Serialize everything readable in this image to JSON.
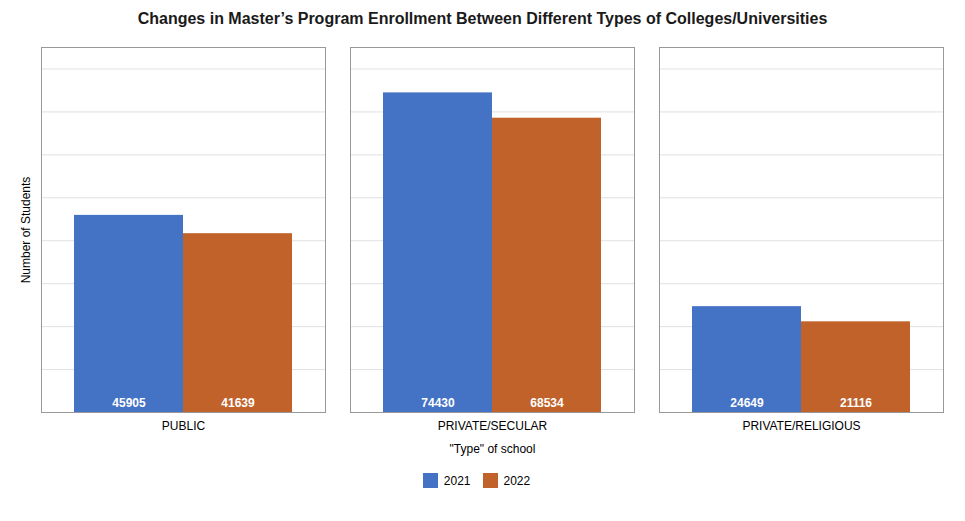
{
  "chart_data": {
    "type": "bar",
    "title": "Changes in Master’s Program Enrollment Between Different Types of Colleges/Universities",
    "xlabel": "\"Type\" of school",
    "ylabel": "Number of Students",
    "categories": [
      "PUBLIC",
      "PRIVATE/SECULAR",
      "PRIVATE/RELIGIOUS"
    ],
    "series": [
      {
        "name": "2021",
        "color": "#4472C4",
        "values": [
          45905,
          74430,
          24649
        ]
      },
      {
        "name": "2022",
        "color": "#C0622A",
        "values": [
          41639,
          68534,
          21116
        ]
      }
    ],
    "ylim": [
      0,
      85000
    ],
    "yticks": [
      0,
      10000,
      20000,
      30000,
      40000,
      50000,
      60000,
      70000,
      80000
    ],
    "grid": true,
    "legend": "bottom",
    "data_labels": true,
    "tick_labels": "x"
  }
}
